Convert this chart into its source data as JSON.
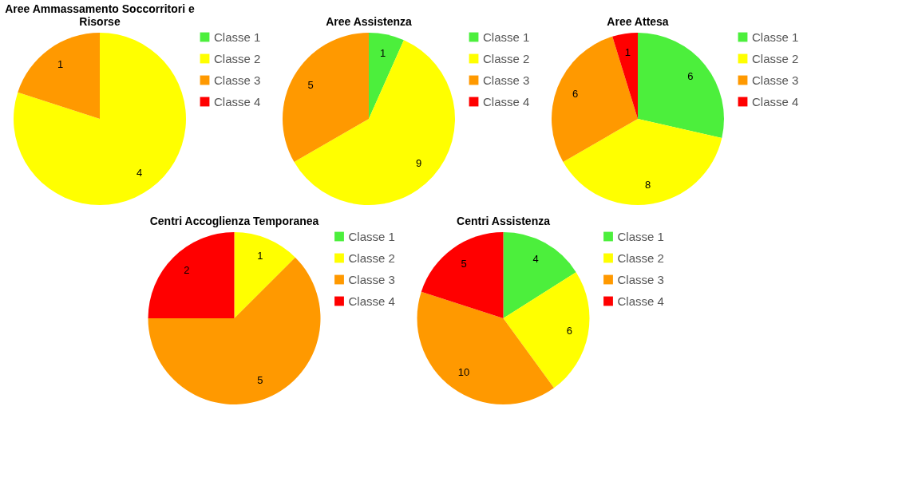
{
  "chart_data": [
    {
      "type": "pie",
      "title": "Aree Ammassamento Soccorritori e Risorse",
      "categories": [
        "Classe 1",
        "Classe 2",
        "Classe 3",
        "Classe 4"
      ],
      "values": [
        0,
        4,
        1,
        0
      ],
      "value_labels": [
        null,
        "4",
        "1",
        null
      ],
      "colors": [
        "#4cef3c",
        "#ffff00",
        "#ff9900",
        "#ff0000"
      ],
      "legend": "right"
    },
    {
      "type": "pie",
      "title": "Aree Assistenza",
      "categories": [
        "Classe 1",
        "Classe 2",
        "Classe 3",
        "Classe 4"
      ],
      "values": [
        1,
        9,
        5,
        0
      ],
      "value_labels": [
        "1",
        "9",
        "5",
        null
      ],
      "colors": [
        "#4cef3c",
        "#ffff00",
        "#ff9900",
        "#ff0000"
      ],
      "legend": "right"
    },
    {
      "type": "pie",
      "title": "Aree Attesa",
      "categories": [
        "Classe 1",
        "Classe 2",
        "Classe 3",
        "Classe 4"
      ],
      "values": [
        6,
        8,
        6,
        1
      ],
      "value_labels": [
        "6",
        "8",
        "6",
        "1"
      ],
      "colors": [
        "#4cef3c",
        "#ffff00",
        "#ff9900",
        "#ff0000"
      ],
      "legend": "right"
    },
    {
      "type": "pie",
      "title": "Centri Accoglienza Temporanea",
      "categories": [
        "Classe 1",
        "Classe 2",
        "Classe 3",
        "Classe 4"
      ],
      "values": [
        0,
        1,
        5,
        2
      ],
      "value_labels": [
        null,
        "1",
        "5",
        "2"
      ],
      "colors": [
        "#4cef3c",
        "#ffff00",
        "#ff9900",
        "#ff0000"
      ],
      "legend": "right"
    },
    {
      "type": "pie",
      "title": "Centri Assistenza",
      "categories": [
        "Classe 1",
        "Classe 2",
        "Classe 3",
        "Classe 4"
      ],
      "values": [
        4,
        6,
        10,
        5
      ],
      "value_labels": [
        "4",
        "6",
        "10",
        "5"
      ],
      "colors": [
        "#4cef3c",
        "#ffff00",
        "#ff9900",
        "#ff0000"
      ],
      "legend": "right"
    }
  ]
}
